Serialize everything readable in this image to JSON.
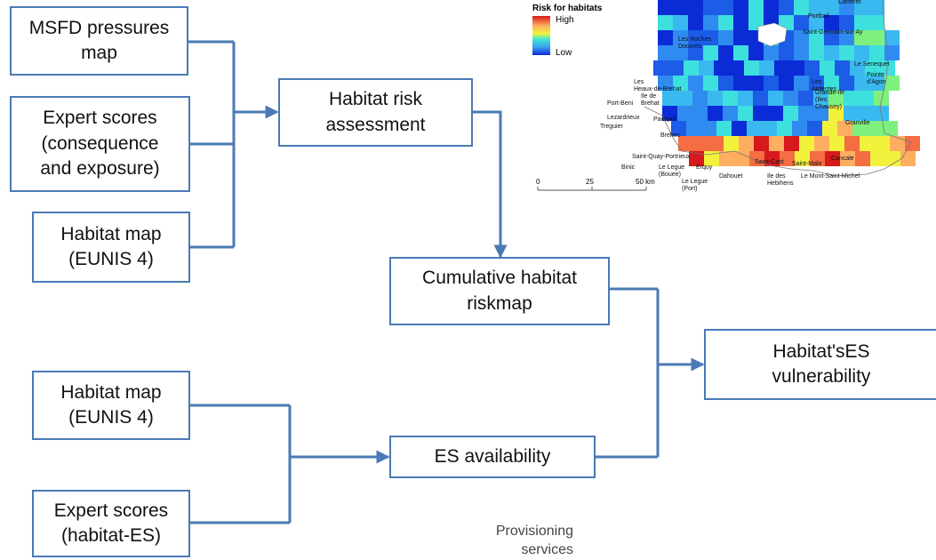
{
  "boxes": {
    "msfd_pressures": "MSFD pressures\nmap",
    "expert_scores_ce": "Expert scores\n(consequence\nand exposure)",
    "habitat_map_1": "Habitat map\n(EUNIS 4)",
    "habitat_risk": "Habitat risk\nassessment",
    "cumulative_risk": "Cumulative habitat\nriskmap",
    "vulnerability": "Habitat'sES\nvulnerability",
    "habitat_map_2": "Habitat map\n(EUNIS 4)",
    "expert_scores_es": "Expert scores\n(habitat-ES)",
    "es_availability": "ES availability"
  },
  "caption": {
    "line1": "Provisioning",
    "line2": "services"
  },
  "map": {
    "legend_title": "Risk for habitats",
    "legend_high": "High",
    "legend_low": "Low",
    "scale_labels": [
      "0",
      "25",
      "50 km"
    ],
    "places": [
      "Carteret",
      "Portbail",
      "Saint-Germain-sur-Ay",
      "Les Roches\nDouvres",
      "Le Senequet",
      "Pointe\nd'Agon",
      "Les\nArdentes",
      "Grande-Ile\n(Iles\nChausey)",
      "Granville",
      "Les\nHeaux-de-Brehat",
      "Port-Beni",
      "Ile de\nBrehat",
      "Lezardrieux",
      "Treguier",
      "Paimpol",
      "Brehec",
      "Saint-Quay-Portrieux",
      "Binic",
      "Le Legue\n(Bouee)",
      "Erquy",
      "Dahouet",
      "Le Legue\n(Port)",
      "Saint-Cast",
      "Saint-Malo",
      "Cancale",
      "Le Mont-Saint-Michel",
      "Ile des\nHebihens"
    ]
  },
  "colors": {
    "box_border": "#4a7ab5",
    "arrow": "#4a7ab5",
    "risk_high": "#d7191c",
    "risk_low": "#0a2bd6"
  }
}
